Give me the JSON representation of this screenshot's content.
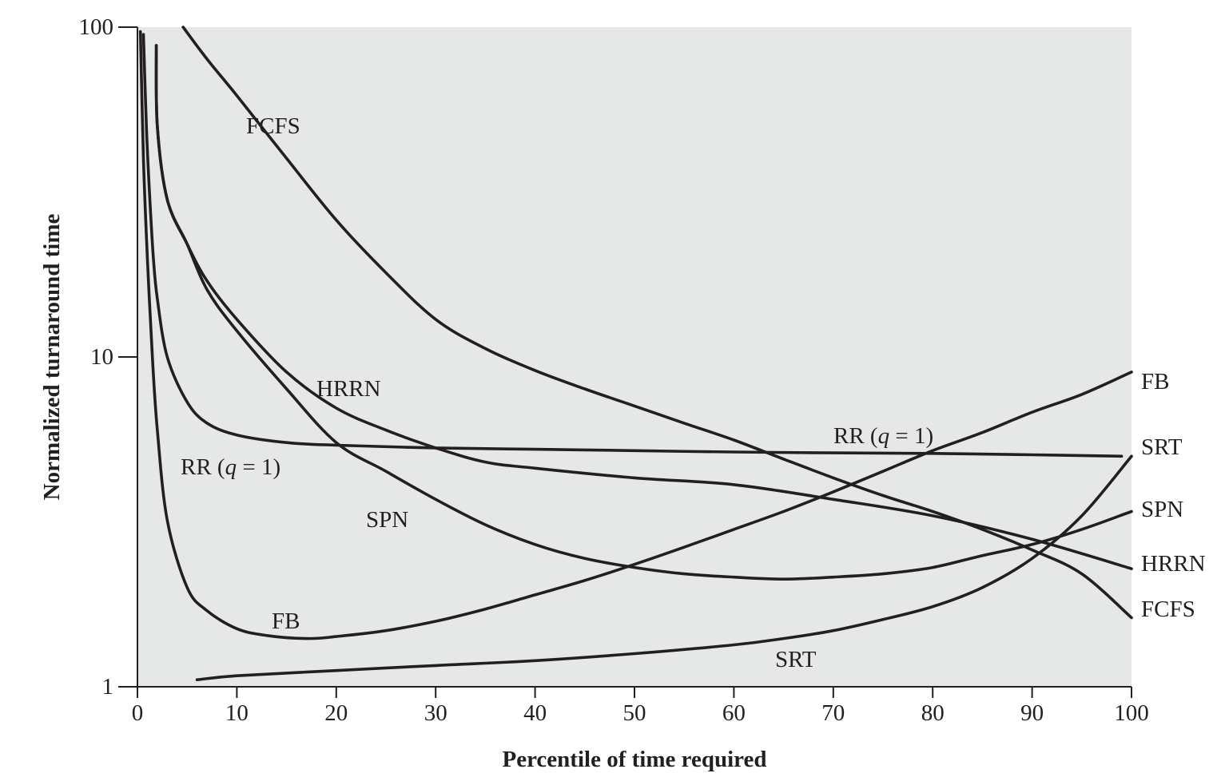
{
  "chart_data": {
    "type": "line",
    "xlabel": "Percentile of time required",
    "ylabel": "Normalized turnaround time",
    "xlim": [
      0,
      100
    ],
    "ylim": [
      1,
      100
    ],
    "y_scale": "log",
    "x_ticks": [
      0,
      10,
      20,
      30,
      40,
      50,
      60,
      70,
      80,
      90,
      100
    ],
    "x_tick_labels": [
      "0",
      "10",
      "20",
      "30",
      "40",
      "50",
      "60",
      "70",
      "80",
      "90",
      "100"
    ],
    "y_ticks": [
      1,
      10,
      100
    ],
    "y_tick_labels": [
      "1",
      "10",
      "100"
    ],
    "plot_background": "#e6e8e7",
    "line_color": "#231f20",
    "series": [
      {
        "name": "FCFS",
        "labels": [
          "FCFS",
          "FCFS"
        ],
        "points": [
          [
            4.6,
            100
          ],
          [
            7,
            80
          ],
          [
            10,
            62
          ],
          [
            15,
            40
          ],
          [
            20,
            26
          ],
          [
            25,
            18
          ],
          [
            30,
            13
          ],
          [
            35,
            10.6
          ],
          [
            40,
            9.1
          ],
          [
            45,
            8
          ],
          [
            50,
            7.1
          ],
          [
            55,
            6.3
          ],
          [
            60,
            5.6
          ],
          [
            65,
            4.9
          ],
          [
            70,
            4.3
          ],
          [
            75,
            3.8
          ],
          [
            80,
            3.4
          ],
          [
            85,
            3.0
          ],
          [
            90,
            2.6
          ],
          [
            95,
            2.2
          ],
          [
            100,
            1.62
          ]
        ]
      },
      {
        "name": "HRRN",
        "labels": [
          "HRRN",
          "HRRN"
        ],
        "points": [
          [
            1.9,
            88
          ],
          [
            2,
            50
          ],
          [
            3,
            30
          ],
          [
            5,
            22
          ],
          [
            7,
            17
          ],
          [
            10,
            13
          ],
          [
            15,
            9
          ],
          [
            20,
            7
          ],
          [
            25,
            6
          ],
          [
            30,
            5.3
          ],
          [
            35,
            4.8
          ],
          [
            40,
            4.6
          ],
          [
            50,
            4.3
          ],
          [
            60,
            4.1
          ],
          [
            70,
            3.7
          ],
          [
            80,
            3.3
          ],
          [
            90,
            2.8
          ],
          [
            100,
            2.28
          ]
        ]
      },
      {
        "name": "SPN",
        "labels": [
          "SPN",
          "SPN"
        ],
        "points": [
          [
            1.9,
            88
          ],
          [
            2,
            50
          ],
          [
            3,
            30
          ],
          [
            5,
            22
          ],
          [
            7,
            16
          ],
          [
            10,
            12
          ],
          [
            15,
            8
          ],
          [
            20,
            5.5
          ],
          [
            25,
            4.5
          ],
          [
            30,
            3.7
          ],
          [
            35,
            3.1
          ],
          [
            40,
            2.7
          ],
          [
            45,
            2.45
          ],
          [
            50,
            2.3
          ],
          [
            55,
            2.2
          ],
          [
            60,
            2.15
          ],
          [
            65,
            2.12
          ],
          [
            70,
            2.15
          ],
          [
            75,
            2.2
          ],
          [
            80,
            2.3
          ],
          [
            85,
            2.5
          ],
          [
            90,
            2.7
          ],
          [
            95,
            3.0
          ],
          [
            100,
            3.4
          ]
        ]
      },
      {
        "name": "RR (q = 1)",
        "labels": [
          "RR (q = 1)",
          "RR (q = 1)"
        ],
        "points": [
          [
            0.6,
            95
          ],
          [
            0.9,
            50
          ],
          [
            1.2,
            32
          ],
          [
            1.6,
            20
          ],
          [
            2,
            15
          ],
          [
            3,
            10
          ],
          [
            5,
            7.3
          ],
          [
            7,
            6.3
          ],
          [
            10,
            5.8
          ],
          [
            15,
            5.5
          ],
          [
            20,
            5.4
          ],
          [
            30,
            5.3
          ],
          [
            40,
            5.25
          ],
          [
            50,
            5.2
          ],
          [
            60,
            5.15
          ],
          [
            70,
            5.12
          ],
          [
            80,
            5.1
          ],
          [
            90,
            5.05
          ],
          [
            99,
            5.0
          ]
        ]
      },
      {
        "name": "FB",
        "labels": [
          "FB",
          "FB"
        ],
        "points": [
          [
            0.3,
            97
          ],
          [
            0.6,
            40
          ],
          [
            1,
            20
          ],
          [
            1.5,
            10
          ],
          [
            2,
            6
          ],
          [
            3,
            3.2
          ],
          [
            5,
            2.0
          ],
          [
            7,
            1.7
          ],
          [
            10,
            1.5
          ],
          [
            13,
            1.43
          ],
          [
            17,
            1.4
          ],
          [
            20,
            1.42
          ],
          [
            25,
            1.48
          ],
          [
            30,
            1.58
          ],
          [
            35,
            1.72
          ],
          [
            40,
            1.9
          ],
          [
            45,
            2.1
          ],
          [
            50,
            2.35
          ],
          [
            55,
            2.65
          ],
          [
            60,
            3.0
          ],
          [
            65,
            3.4
          ],
          [
            70,
            3.9
          ],
          [
            75,
            4.5
          ],
          [
            80,
            5.2
          ],
          [
            85,
            5.9
          ],
          [
            90,
            6.8
          ],
          [
            95,
            7.7
          ],
          [
            100,
            9.0
          ]
        ]
      },
      {
        "name": "SRT",
        "labels": [
          "SRT",
          "SRT"
        ],
        "points": [
          [
            6,
            1.05
          ],
          [
            10,
            1.08
          ],
          [
            20,
            1.12
          ],
          [
            30,
            1.16
          ],
          [
            40,
            1.2
          ],
          [
            50,
            1.26
          ],
          [
            60,
            1.34
          ],
          [
            65,
            1.4
          ],
          [
            70,
            1.48
          ],
          [
            75,
            1.6
          ],
          [
            80,
            1.75
          ],
          [
            85,
            2.0
          ],
          [
            90,
            2.45
          ],
          [
            95,
            3.3
          ],
          [
            100,
            5.0
          ]
        ]
      }
    ]
  }
}
